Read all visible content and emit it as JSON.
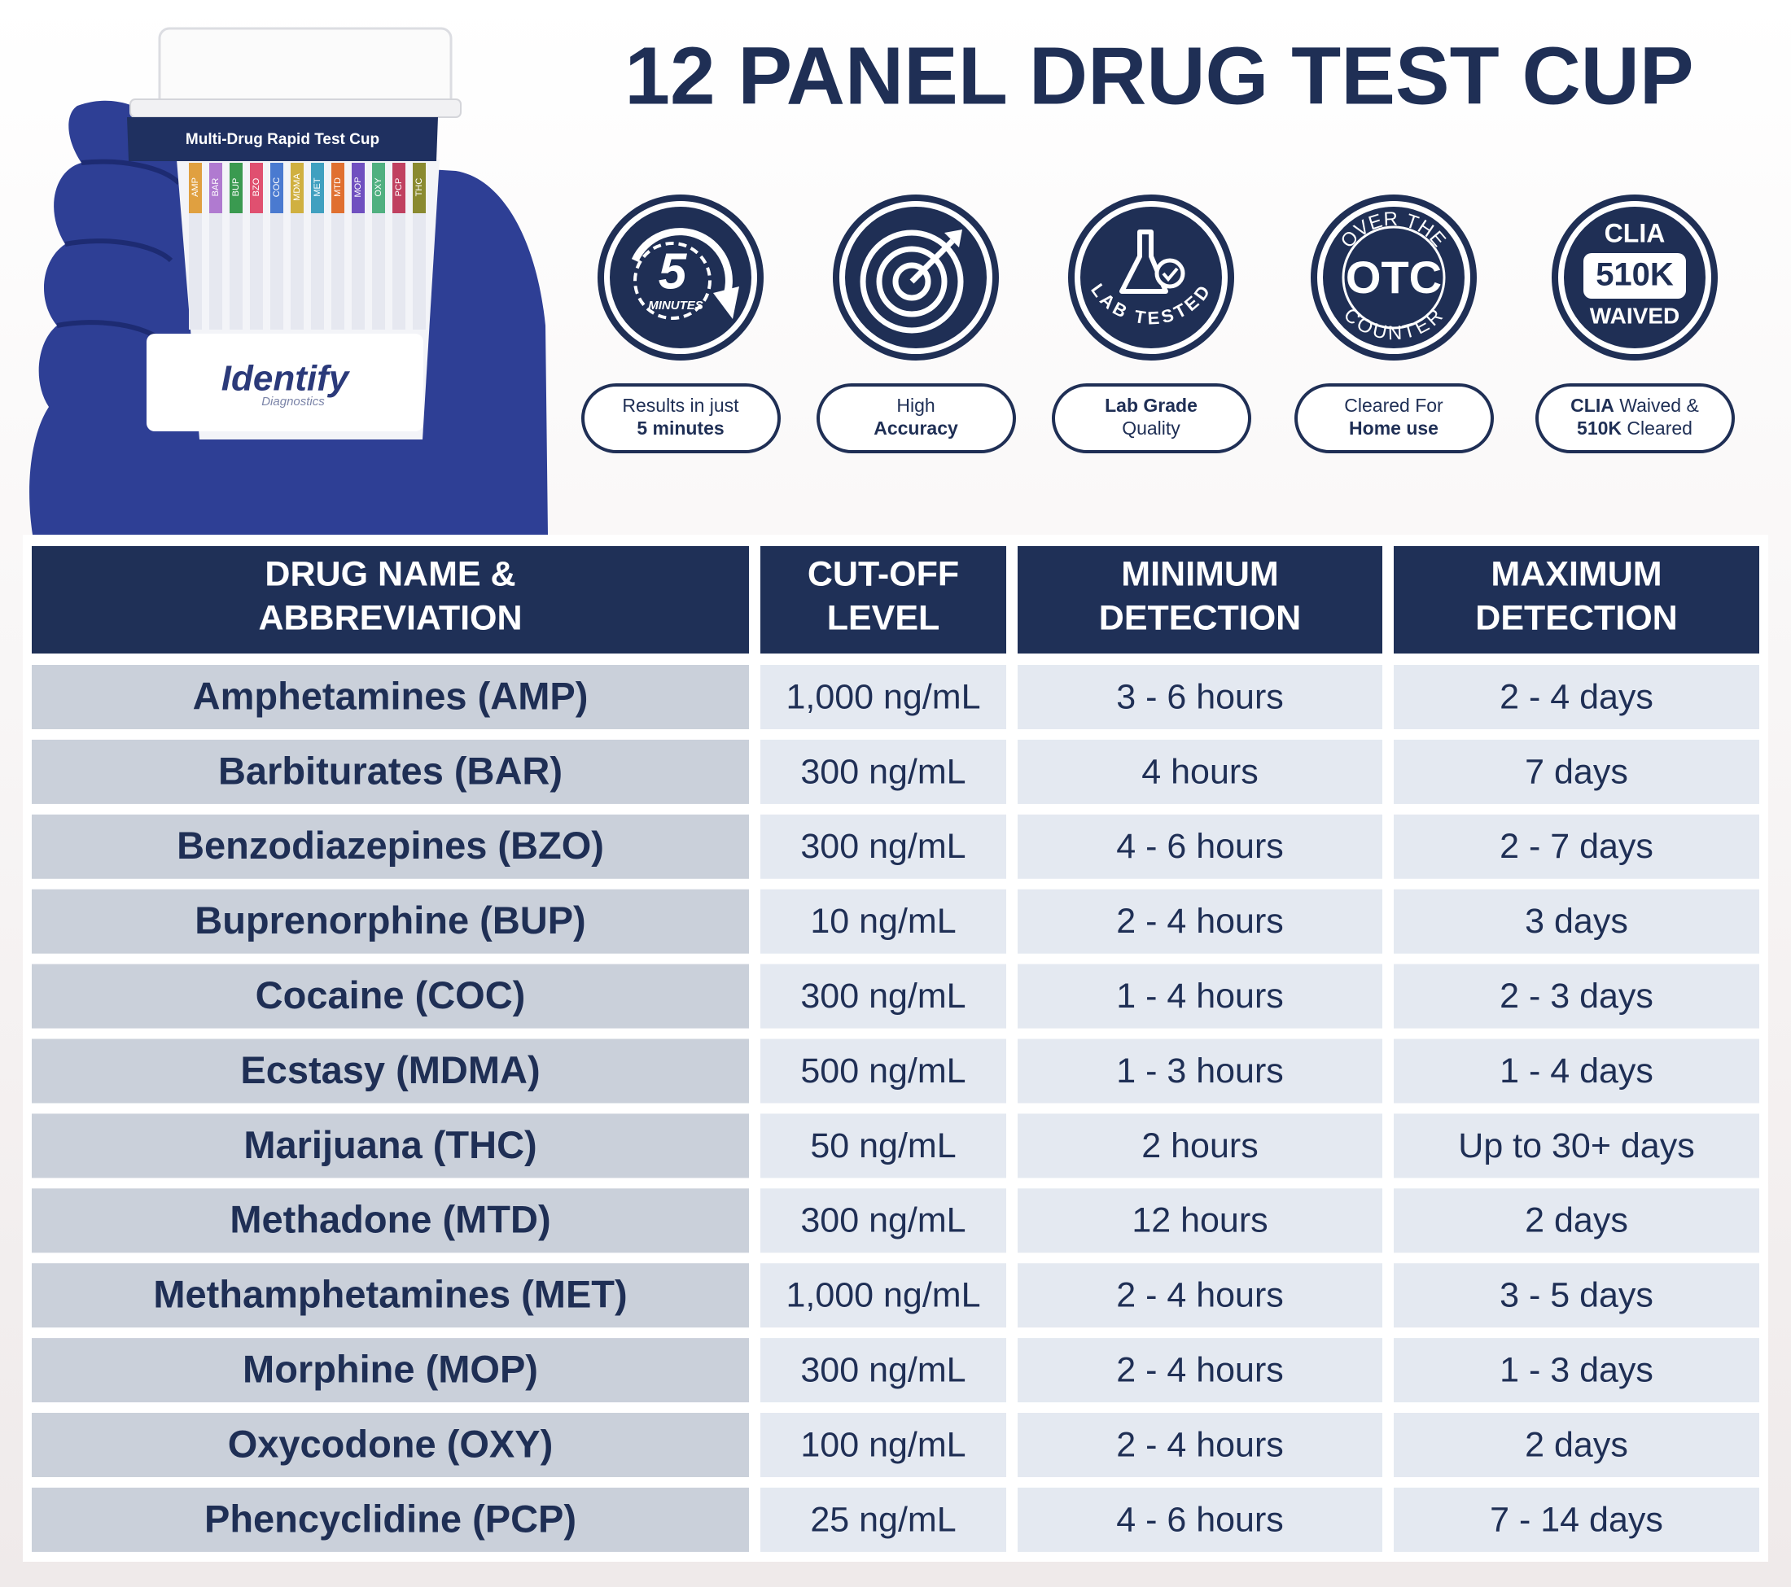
{
  "header": {
    "title": "12 PANEL DRUG TEST CUP"
  },
  "product": {
    "band_label": "Multi-Drug Rapid Test Cup",
    "brand": "Identify",
    "brand_sub": "Diagnostics",
    "strips": [
      "AMP",
      "BAR",
      "BUP",
      "BZO",
      "COC",
      "MDMA",
      "MET",
      "MTD",
      "MOP",
      "OXY",
      "PCP",
      "THC"
    ]
  },
  "badges": [
    {
      "icon": [
        "5",
        "MINUTES"
      ],
      "caption": [
        "Results in just",
        "5 minutes"
      ]
    },
    {
      "icon": [],
      "caption": [
        "High",
        "Accuracy"
      ]
    },
    {
      "icon": [
        "LAB TESTED"
      ],
      "caption": [
        "Lab Grade",
        "Quality"
      ]
    },
    {
      "icon": [
        "OVER THE",
        "OTC",
        "COUNTER"
      ],
      "caption": [
        "Cleared For",
        "Home use"
      ]
    },
    {
      "icon": [
        "CLIA",
        "510K",
        "WAIVED"
      ],
      "caption": [
        "CLIA",
        "Waived &",
        "510K",
        "Cleared"
      ]
    }
  ],
  "table": {
    "columns": [
      [
        "DRUG NAME &",
        "ABBREVIATION"
      ],
      [
        "CUT-OFF",
        "LEVEL"
      ],
      [
        "MINIMUM",
        "DETECTION"
      ],
      [
        "MAXIMUM",
        "DETECTION"
      ]
    ],
    "rows": [
      [
        "Amphetamines (AMP)",
        "1,000 ng/mL",
        "3 - 6 hours",
        "2 - 4 days"
      ],
      [
        "Barbiturates (BAR)",
        "300 ng/mL",
        "4 hours",
        "7 days"
      ],
      [
        "Benzodiazepines (BZO)",
        "300 ng/mL",
        "4 - 6 hours",
        "2 - 7 days"
      ],
      [
        "Buprenorphine (BUP)",
        "10 ng/mL",
        "2 - 4 hours",
        "3 days"
      ],
      [
        "Cocaine (COC)",
        "300 ng/mL",
        "1 - 4 hours",
        "2 - 3 days"
      ],
      [
        "Ecstasy (MDMA)",
        "500 ng/mL",
        "1 - 3 hours",
        "1 - 4 days"
      ],
      [
        "Marijuana (THC)",
        "50 ng/mL",
        "2 hours",
        "Up to 30+ days"
      ],
      [
        "Methadone (MTD)",
        "300 ng/mL",
        "12 hours",
        "2 days"
      ],
      [
        "Methamphetamines (MET)",
        "1,000 ng/mL",
        "2 - 4 hours",
        "3 - 5 days"
      ],
      [
        "Morphine (MOP)",
        "300 ng/mL",
        "2 - 4 hours",
        "1 - 3 days"
      ],
      [
        "Oxycodone (OXY)",
        "100 ng/mL",
        "2 - 4 hours",
        "2 days"
      ],
      [
        "Phencyclidine (PCP)",
        "25 ng/mL",
        "4 - 6 hours",
        "7 - 14 days"
      ]
    ]
  }
}
